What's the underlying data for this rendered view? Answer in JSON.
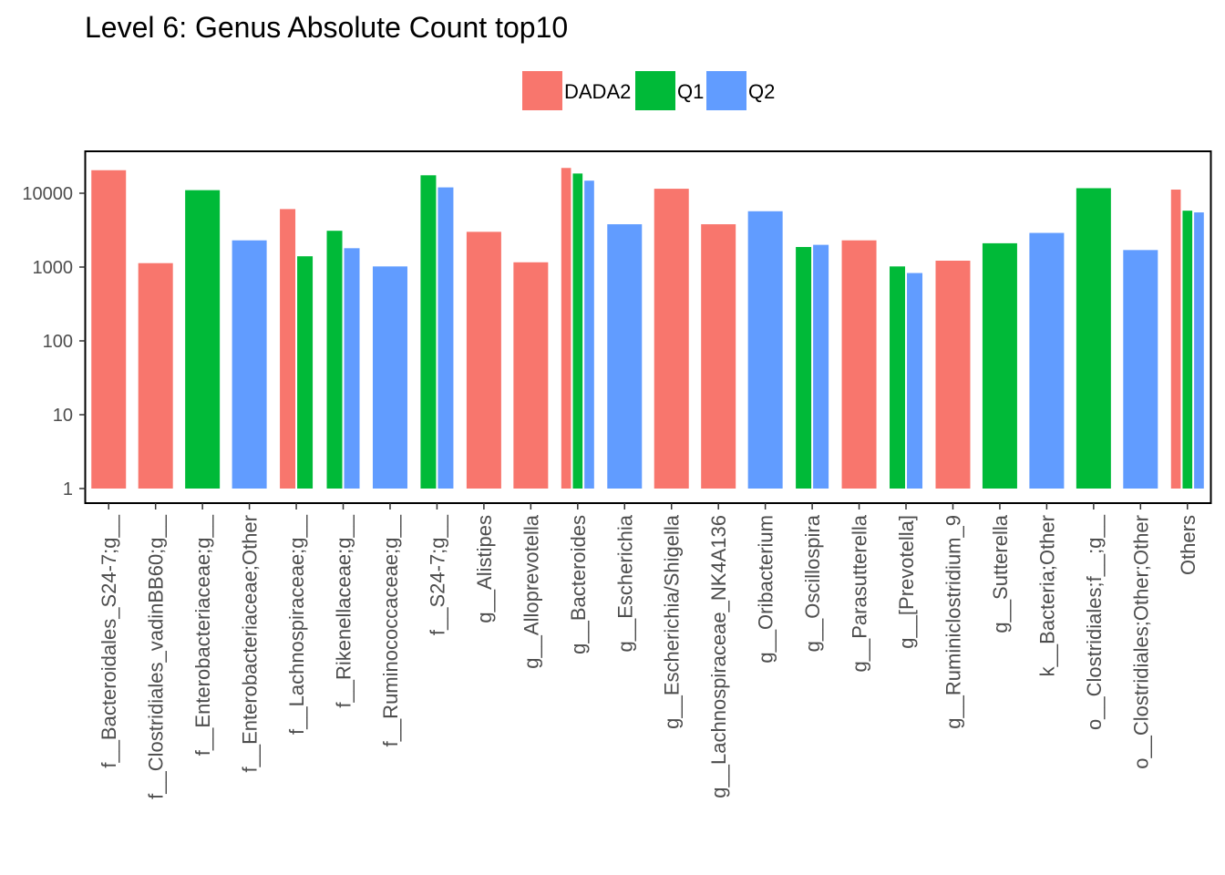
{
  "chart_data": {
    "type": "bar",
    "title": "Level 6: Genus Absolute Count top10",
    "xlabel": "",
    "ylabel": "",
    "y_scale": "log10",
    "ylim": [
      1,
      30000
    ],
    "y_ticks": [
      1,
      10,
      100,
      1000,
      10000
    ],
    "y_tick_labels": [
      "1",
      "10",
      "100",
      "1000",
      "10000"
    ],
    "grid": false,
    "legend_position": "top",
    "colors": {
      "DADA2": "#F8766D",
      "Q1": "#00BA38",
      "Q2": "#619CFF"
    },
    "categories": [
      "f__Bacteroidales_S24-7;g__",
      "f__Clostridiales_vadinBB60;g__",
      "f__Enterobacteriaceae;g__",
      "f__Enterobacteriaceae;Other",
      "f__Lachnospiraceae;g__",
      "f__Rikenellaceae;g__",
      "f__Ruminococcaceae;g__",
      "f__S24-7;g__",
      "g__Alistipes",
      "g__Alloprevotella",
      "g__Bacteroides",
      "g__Escherichia",
      "g__Escherichia/Shigella",
      "g__Lachnospiraceae_NK4A136",
      "g__Oribacterium",
      "g__Oscillospira",
      "g__Parasutterella",
      "g__[Prevotella]",
      "g__Ruminiclostridium_9",
      "g__Sutterella",
      "k__Bacteria;Other",
      "o__Clostridiales;f__;g__",
      "o__Clostridiales;Other;Other",
      "Others"
    ],
    "series": [
      {
        "name": "DADA2",
        "values": [
          20500,
          1130,
          null,
          null,
          6100,
          null,
          null,
          null,
          3000,
          1160,
          22000,
          null,
          11500,
          3800,
          null,
          null,
          2300,
          null,
          1220,
          null,
          null,
          null,
          null,
          11200
        ]
      },
      {
        "name": "Q1",
        "values": [
          null,
          null,
          11000,
          null,
          1400,
          3100,
          null,
          17500,
          null,
          null,
          18500,
          null,
          null,
          null,
          null,
          1870,
          null,
          1020,
          null,
          2100,
          null,
          11700,
          null,
          5800
        ]
      },
      {
        "name": "Q2",
        "values": [
          null,
          null,
          null,
          2300,
          null,
          1800,
          1020,
          12000,
          null,
          null,
          14800,
          3800,
          null,
          null,
          5700,
          2000,
          null,
          830,
          null,
          null,
          2900,
          null,
          1700,
          5500
        ]
      }
    ]
  }
}
